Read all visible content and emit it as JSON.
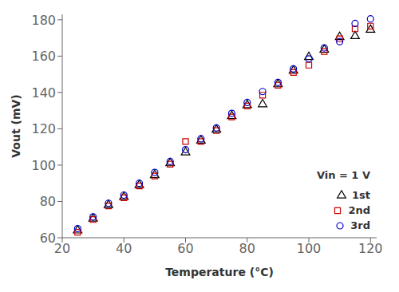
{
  "chart_data": {
    "type": "scatter",
    "xlabel": "Temperature (°C)",
    "ylabel": "Vout (mV)",
    "xlim": [
      20,
      122
    ],
    "ylim": [
      60,
      183
    ],
    "xticks": [
      20,
      40,
      60,
      80,
      100,
      120
    ],
    "yticks": [
      60,
      80,
      100,
      120,
      140,
      160,
      180
    ],
    "x": [
      25,
      30,
      35,
      40,
      45,
      50,
      55,
      60,
      65,
      70,
      75,
      80,
      85,
      90,
      95,
      100,
      105,
      110,
      115,
      120
    ],
    "series": [
      {
        "name": "1st",
        "color": "#000000",
        "marker": "triangle",
        "values": [
          64.0,
          70.5,
          78.0,
          82.5,
          89.0,
          94.5,
          101.0,
          107.0,
          113.5,
          119.5,
          127.0,
          133.0,
          133.5,
          144.5,
          152.0,
          159.5,
          163.5,
          170.5,
          171.0,
          174.5
        ]
      },
      {
        "name": "2nd",
        "color": "#cc0000",
        "marker": "square",
        "values": [
          63.0,
          70.0,
          77.5,
          82.0,
          88.5,
          94.0,
          100.5,
          113.0,
          113.0,
          119.0,
          126.5,
          132.5,
          138.5,
          144.0,
          151.0,
          155.0,
          162.5,
          169.5,
          175.0,
          176.5
        ]
      },
      {
        "name": "3rd",
        "color": "#0000cc",
        "marker": "circle",
        "values": [
          65.0,
          71.5,
          79.0,
          83.5,
          90.0,
          96.0,
          102.0,
          108.5,
          114.5,
          120.5,
          128.5,
          134.5,
          140.5,
          145.5,
          153.0,
          158.5,
          164.5,
          168.0,
          178.0,
          180.5
        ]
      }
    ],
    "annotation": "Vin = 1 V",
    "legend": "lower right",
    "grid": false
  }
}
